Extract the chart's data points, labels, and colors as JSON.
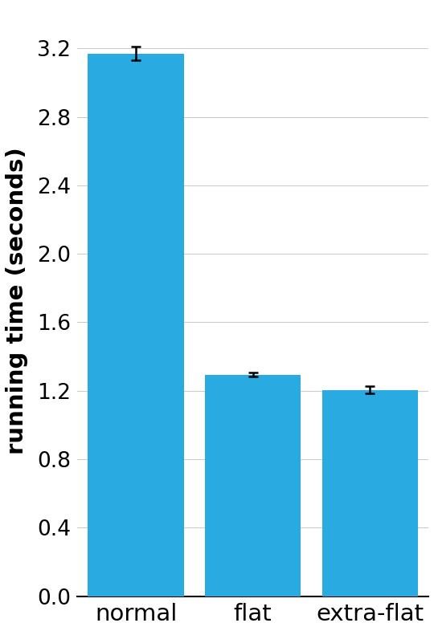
{
  "categories": [
    "normal",
    "flat",
    "extra-flat"
  ],
  "values": [
    3.17,
    1.295,
    1.205
  ],
  "errors": [
    0.04,
    0.012,
    0.022
  ],
  "bar_color": "#29ABE2",
  "bar_width": 0.82,
  "ylabel": "running time (seconds)",
  "ylim": [
    0.0,
    3.45
  ],
  "yticks": [
    0.0,
    0.4,
    0.8,
    1.2,
    1.6,
    2.0,
    2.4,
    2.8,
    3.2
  ],
  "background_color": "#ffffff",
  "grid_color": "#cccccc",
  "ylabel_fontsize": 21,
  "tick_fontsize": 19,
  "xtick_fontsize": 21,
  "errorbar_color": "#000000",
  "errorbar_capsize": 4,
  "errorbar_linewidth": 1.8,
  "xlim": [
    -0.5,
    2.5
  ]
}
